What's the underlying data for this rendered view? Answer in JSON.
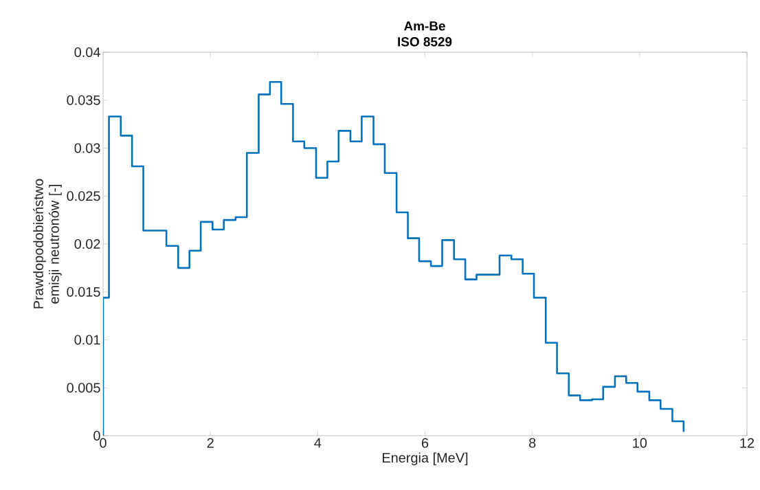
{
  "chart_data": {
    "type": "step",
    "title": "Am-Be",
    "subtitle": "ISO 8529",
    "xlabel": "Energia [MeV]",
    "ylabel": "Prawdopodobieństwo emisji neutronów [-]",
    "x": [
      0,
      0,
      0.11,
      0.33,
      0.54,
      0.75,
      0.97,
      1.18,
      1.4,
      1.61,
      1.82,
      2.04,
      2.25,
      2.47,
      2.68,
      2.9,
      3.11,
      3.32,
      3.54,
      3.75,
      3.97,
      4.18,
      4.39,
      4.61,
      4.82,
      5.04,
      5.25,
      5.47,
      5.68,
      5.89,
      6.11,
      6.32,
      6.54,
      6.75,
      6.96,
      7.18,
      7.39,
      7.61,
      7.82,
      8.03,
      8.25,
      8.46,
      8.68,
      8.89,
      9.11,
      9.32,
      9.54,
      9.75,
      9.96,
      10.18,
      10.39,
      10.61,
      10.82
    ],
    "values": [
      0,
      0.0144,
      0.0333,
      0.0313,
      0.0281,
      0.0214,
      0.0214,
      0.0198,
      0.0175,
      0.0193,
      0.0223,
      0.0215,
      0.0225,
      0.0228,
      0.0295,
      0.0356,
      0.0369,
      0.0346,
      0.0307,
      0.03,
      0.0269,
      0.0286,
      0.0318,
      0.0307,
      0.0333,
      0.0304,
      0.0274,
      0.0233,
      0.0206,
      0.0182,
      0.0177,
      0.0204,
      0.0184,
      0.0163,
      0.0168,
      0.0168,
      0.0188,
      0.0184,
      0.0169,
      0.0144,
      0.0097,
      0.0065,
      0.0042,
      0.0037,
      0.0038,
      0.0051,
      0.0062,
      0.0055,
      0.0046,
      0.0037,
      0.0028,
      0.0015,
      0.0004
    ],
    "color": "#0072bd",
    "xlim": [
      0,
      12
    ],
    "ylim": [
      0,
      0.04
    ],
    "xticks": [
      0,
      2,
      4,
      6,
      8,
      10,
      12
    ],
    "yticks": [
      0,
      0.005,
      0.01,
      0.015,
      0.02,
      0.025,
      0.03,
      0.035,
      0.04
    ]
  }
}
